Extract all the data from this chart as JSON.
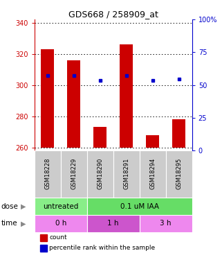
{
  "title": "GDS668 / 258909_at",
  "samples": [
    "GSM18228",
    "GSM18229",
    "GSM18290",
    "GSM18291",
    "GSM18294",
    "GSM18295"
  ],
  "bar_bottom": 260,
  "bar_tops": [
    323,
    316,
    273,
    326,
    268,
    278
  ],
  "blue_dots": [
    306,
    306,
    303,
    306,
    303,
    304
  ],
  "ylim_left": [
    258,
    342
  ],
  "ylim_right": [
    0,
    100
  ],
  "yticks_left": [
    260,
    280,
    300,
    320,
    340
  ],
  "yticks_right": [
    0,
    25,
    50,
    75,
    100
  ],
  "ytick_labels_right": [
    "0",
    "25",
    "50",
    "75",
    "100%"
  ],
  "bar_color": "#cc0000",
  "dot_color": "#0000cc",
  "bg_color": "#ffffff",
  "dose_labels": [
    {
      "label": "untreated",
      "start": 0,
      "end": 2,
      "color": "#88ee88"
    },
    {
      "label": "0.1 uM IAA",
      "start": 2,
      "end": 6,
      "color": "#66dd66"
    }
  ],
  "time_labels": [
    {
      "label": "0 h",
      "start": 0,
      "end": 2,
      "color": "#ee88ee"
    },
    {
      "label": "1 h",
      "start": 2,
      "end": 4,
      "color": "#cc55cc"
    },
    {
      "label": "3 h",
      "start": 4,
      "end": 6,
      "color": "#ee88ee"
    }
  ],
  "dose_row_label": "dose",
  "time_row_label": "time",
  "legend_count_label": "count",
  "legend_pct_label": "percentile rank within the sample",
  "title_fontsize": 9,
  "tick_fontsize": 7,
  "left_tick_color": "#cc0000",
  "right_tick_color": "#0000cc",
  "sample_bg_color": "#cccccc",
  "sample_fontsize": 6,
  "row_label_fontsize": 7.5,
  "cell_label_fontsize": 7.5,
  "legend_fontsize": 6.5
}
